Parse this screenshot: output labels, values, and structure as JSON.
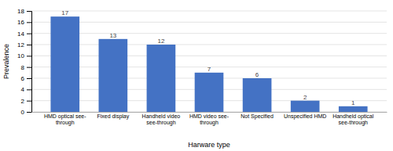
{
  "chart_data": {
    "type": "bar",
    "categories": [
      "HMD optical see-\nthrough",
      "Fixed display",
      "Handheld video\nsee-through",
      "HMD video see-\nthrough",
      "Not Specified",
      "Unspecified HMD",
      "Handheld optical\nsee-through"
    ],
    "values": [
      17,
      13,
      12,
      7,
      6,
      2,
      1
    ],
    "color": "#4472C4",
    "xlabel": "Harware type",
    "ylabel": "Prevalence",
    "ylim": [
      0,
      18
    ],
    "yticks": [
      0,
      2,
      4,
      6,
      8,
      10,
      12,
      14,
      16,
      18
    ],
    "grid": true,
    "data_labels": true
  }
}
